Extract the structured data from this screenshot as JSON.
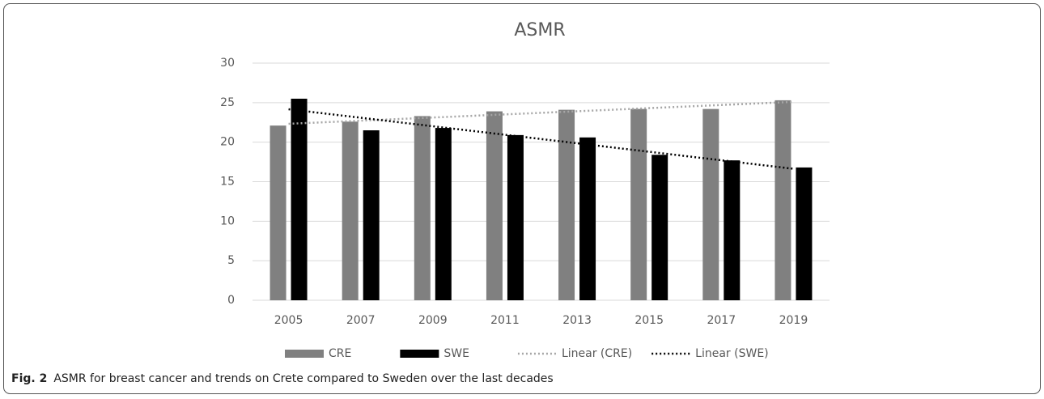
{
  "chart_data": {
    "type": "bar",
    "title": "ASMR",
    "categories": [
      "2005",
      "2007",
      "2009",
      "2011",
      "2013",
      "2015",
      "2017",
      "2019"
    ],
    "series": [
      {
        "name": "CRE",
        "color": "#808080",
        "values": [
          22.1,
          22.6,
          23.3,
          23.9,
          24.1,
          24.2,
          24.2,
          25.3
        ],
        "trendline": {
          "name": "Linear (CRE)",
          "color": "#a6a6a6"
        }
      },
      {
        "name": "SWE",
        "color": "#000000",
        "values": [
          25.5,
          21.5,
          21.8,
          20.9,
          20.6,
          18.4,
          17.7,
          16.8
        ],
        "trendline": {
          "name": "Linear (SWE)",
          "color": "#000000"
        }
      }
    ],
    "ylim": [
      0,
      30
    ],
    "yticks": [
      0,
      5,
      10,
      15,
      20,
      25,
      30
    ],
    "grid": true,
    "legend": "bottom"
  },
  "caption": {
    "label": "Fig. 2",
    "text": "ASMR for breast cancer and trends on Crete compared to Sweden over the last decades"
  }
}
